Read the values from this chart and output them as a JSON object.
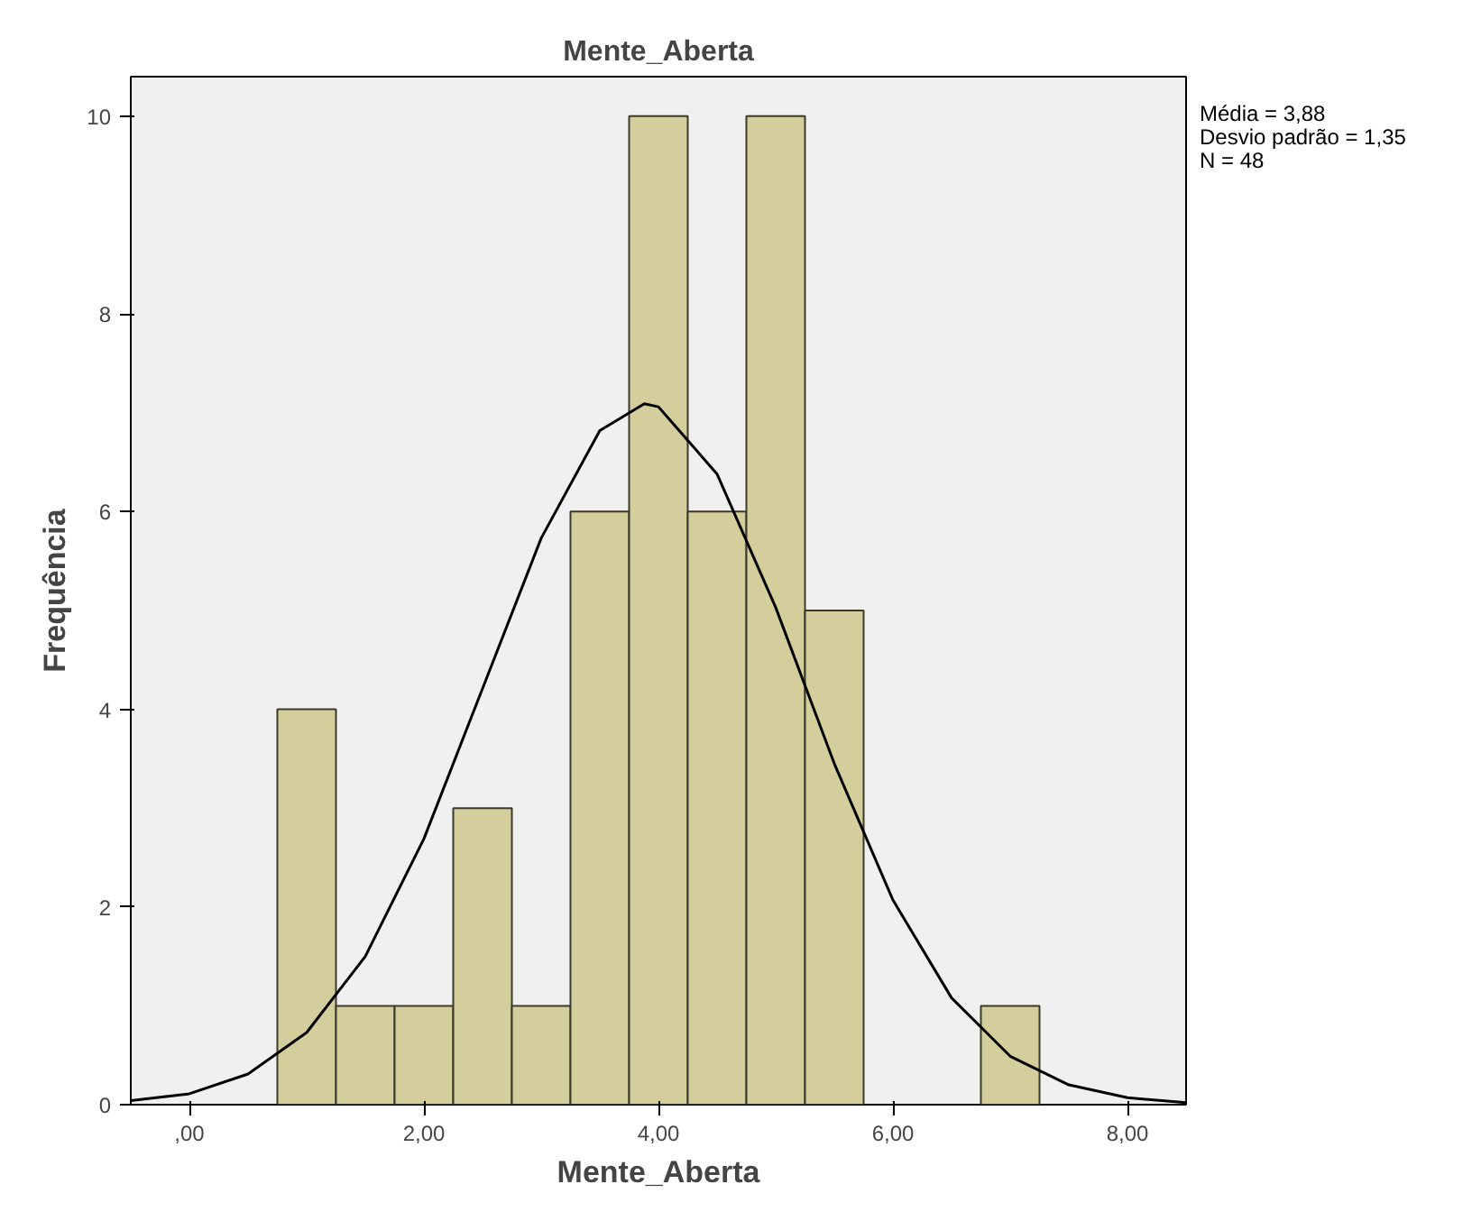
{
  "chart_data": {
    "type": "histogram",
    "title": "Mente_Aberta",
    "xlabel": "Mente_Aberta",
    "ylabel": "Frequência",
    "bins": [
      0.75,
      1.25,
      1.75,
      2.25,
      2.75,
      3.25,
      3.75,
      4.25,
      4.75,
      5.25,
      5.75,
      6.25,
      6.75,
      7.25
    ],
    "values": [
      4,
      1,
      1,
      3,
      1,
      6,
      10,
      6,
      10,
      5,
      0,
      0,
      1
    ],
    "color": "#d3ce9b",
    "series": [
      {
        "type": "line",
        "color": "#000000",
        "x": [
          -0.5,
          0,
          0.5,
          1,
          1.5,
          2,
          2.5,
          3,
          3.5,
          3.88,
          4,
          4.5,
          5,
          5.5,
          6,
          6.5,
          7,
          7.5,
          8,
          8.5
        ],
        "values": [
          0.04,
          0.11,
          0.31,
          0.73,
          1.5,
          2.69,
          4.21,
          5.73,
          6.82,
          7.09,
          7.06,
          6.38,
          5.03,
          3.45,
          2.07,
          1.08,
          0.49,
          0.2,
          0.07,
          0.02
        ]
      }
    ],
    "xlim": [
      -0.5,
      8.5
    ],
    "ylim": [
      0,
      10.4
    ],
    "xticks": [
      {
        "value": 0,
        "label": ",00"
      },
      {
        "value": 2,
        "label": "2,00"
      },
      {
        "value": 4,
        "label": "4,00"
      },
      {
        "value": 6,
        "label": "6,00"
      },
      {
        "value": 8,
        "label": "8,00"
      }
    ],
    "yticks": [
      0,
      2,
      4,
      6,
      8,
      10
    ],
    "annotations": [
      "Média = 3,88",
      "Desvio padrão = 1,35",
      "N = 48"
    ]
  }
}
